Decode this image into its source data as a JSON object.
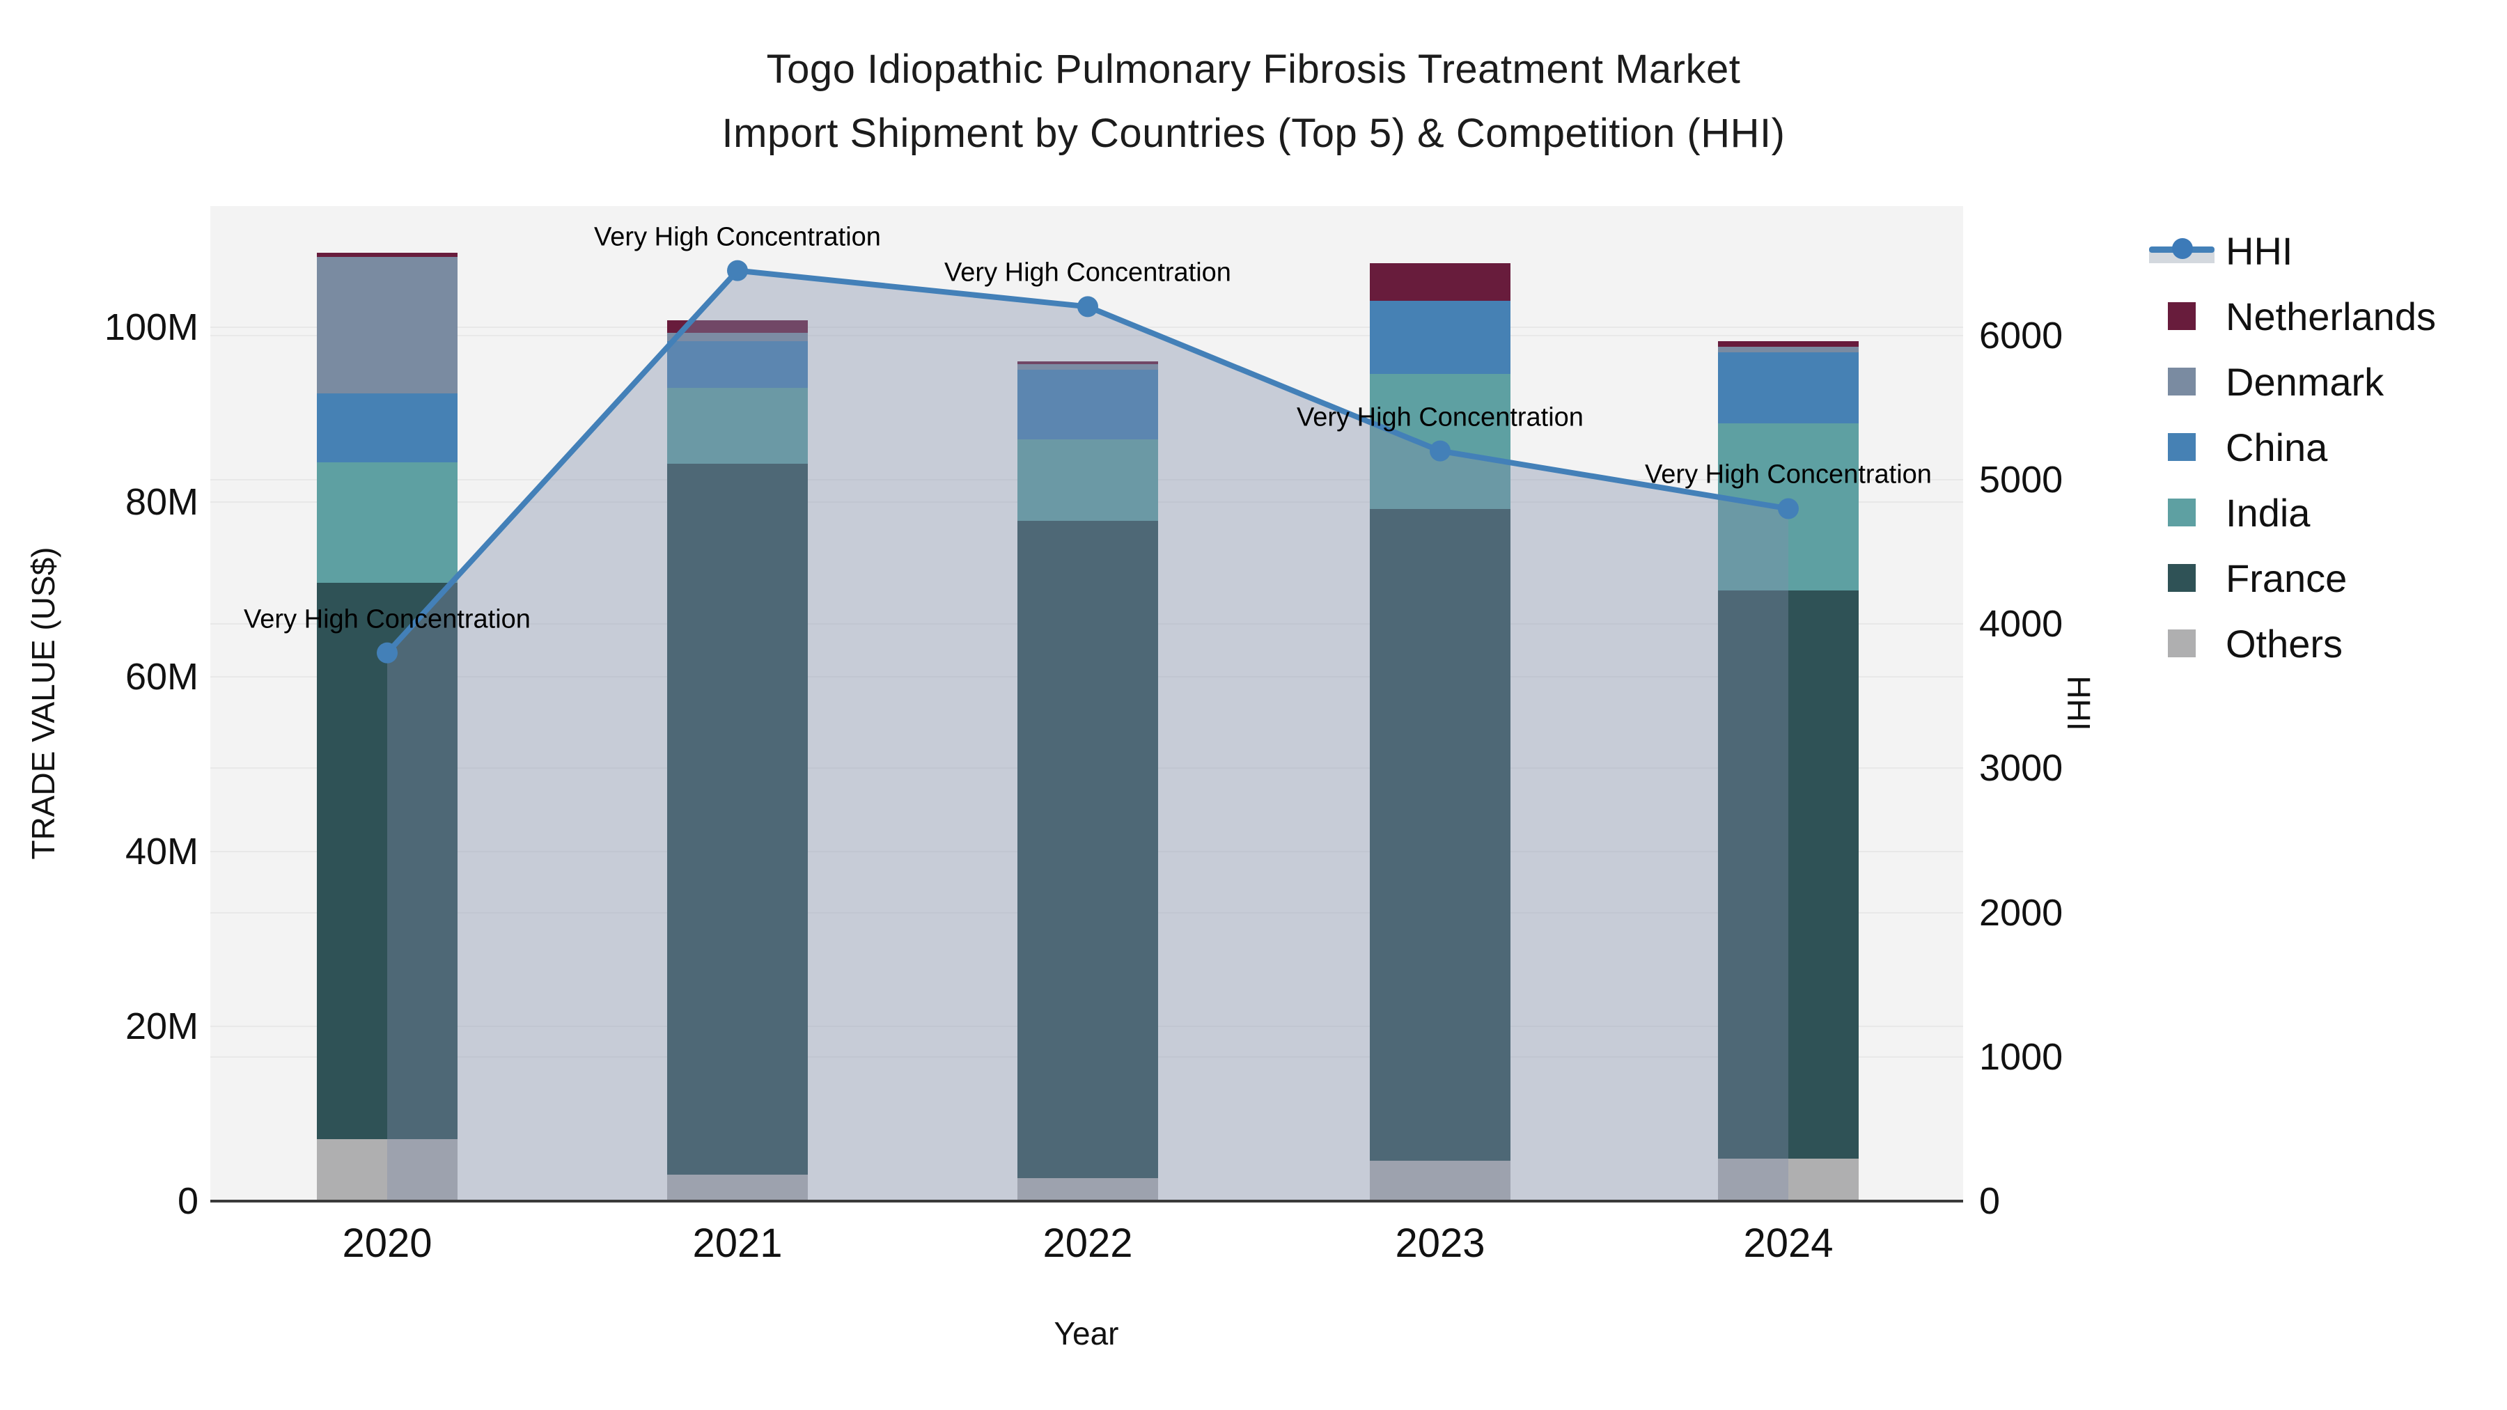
{
  "title": {
    "line1": "Togo Idiopathic Pulmonary Fibrosis Treatment Market",
    "line2": "Import Shipment by Countries (Top 5) & Competition (HHI)"
  },
  "chart_data": {
    "type": "bar",
    "subtype": "stacked-bars-with-line",
    "categories": [
      "2020",
      "2021",
      "2022",
      "2023",
      "2024"
    ],
    "series": [
      {
        "name": "Others",
        "color": "#afafb0",
        "values": [
          7.1,
          3.0,
          2.6,
          4.6,
          4.9
        ]
      },
      {
        "name": "France",
        "color": "#2f5256",
        "values": [
          63.7,
          81.4,
          75.3,
          74.6,
          65.0
        ]
      },
      {
        "name": "India",
        "color": "#5ea0a2",
        "values": [
          13.8,
          8.7,
          9.3,
          15.5,
          19.1
        ]
      },
      {
        "name": "China",
        "color": "#4681b4",
        "values": [
          7.9,
          5.3,
          8.0,
          8.4,
          8.2
        ]
      },
      {
        "name": "Denmark",
        "color": "#7a8ba1",
        "values": [
          15.6,
          1.0,
          0.6,
          0.0,
          0.6
        ]
      },
      {
        "name": "Netherlands",
        "color": "#681c3c",
        "values": [
          0.5,
          1.4,
          0.3,
          4.3,
          0.6
        ]
      }
    ],
    "line_series": {
      "name": "HHI",
      "color": "#4380b8",
      "fill_color": "rgba(128,142,170,0.38)",
      "values": [
        3800,
        6450,
        6200,
        5200,
        4800
      ]
    },
    "annotations": [
      {
        "text": "Very High Concentration",
        "x_index": 0
      },
      {
        "text": "Very High Concentration",
        "x_index": 1
      },
      {
        "text": "Very High Concentration",
        "x_index": 2
      },
      {
        "text": "Very High Concentration",
        "x_index": 3
      },
      {
        "text": "Very High Concentration",
        "x_index": 4
      }
    ],
    "y_left": {
      "label": "TRADE VALUE (US$)",
      "tick_labels": [
        "0",
        "20M",
        "40M",
        "60M",
        "80M",
        "100M"
      ],
      "tick_values": [
        0,
        20,
        40,
        60,
        80,
        100
      ],
      "axis_max": 113.9
    },
    "y_right": {
      "label": "HHI",
      "tick_labels": [
        "0",
        "1000",
        "2000",
        "3000",
        "4000",
        "5000",
        "6000"
      ],
      "tick_values": [
        0,
        1000,
        2000,
        3000,
        4000,
        5000,
        6000
      ],
      "axis_max": 6897
    },
    "x_axis": {
      "label": "Year"
    },
    "legend_order": [
      "HHI",
      "Netherlands",
      "Denmark",
      "China",
      "India",
      "France",
      "Others"
    ],
    "grid": true,
    "legend_position": "right"
  }
}
